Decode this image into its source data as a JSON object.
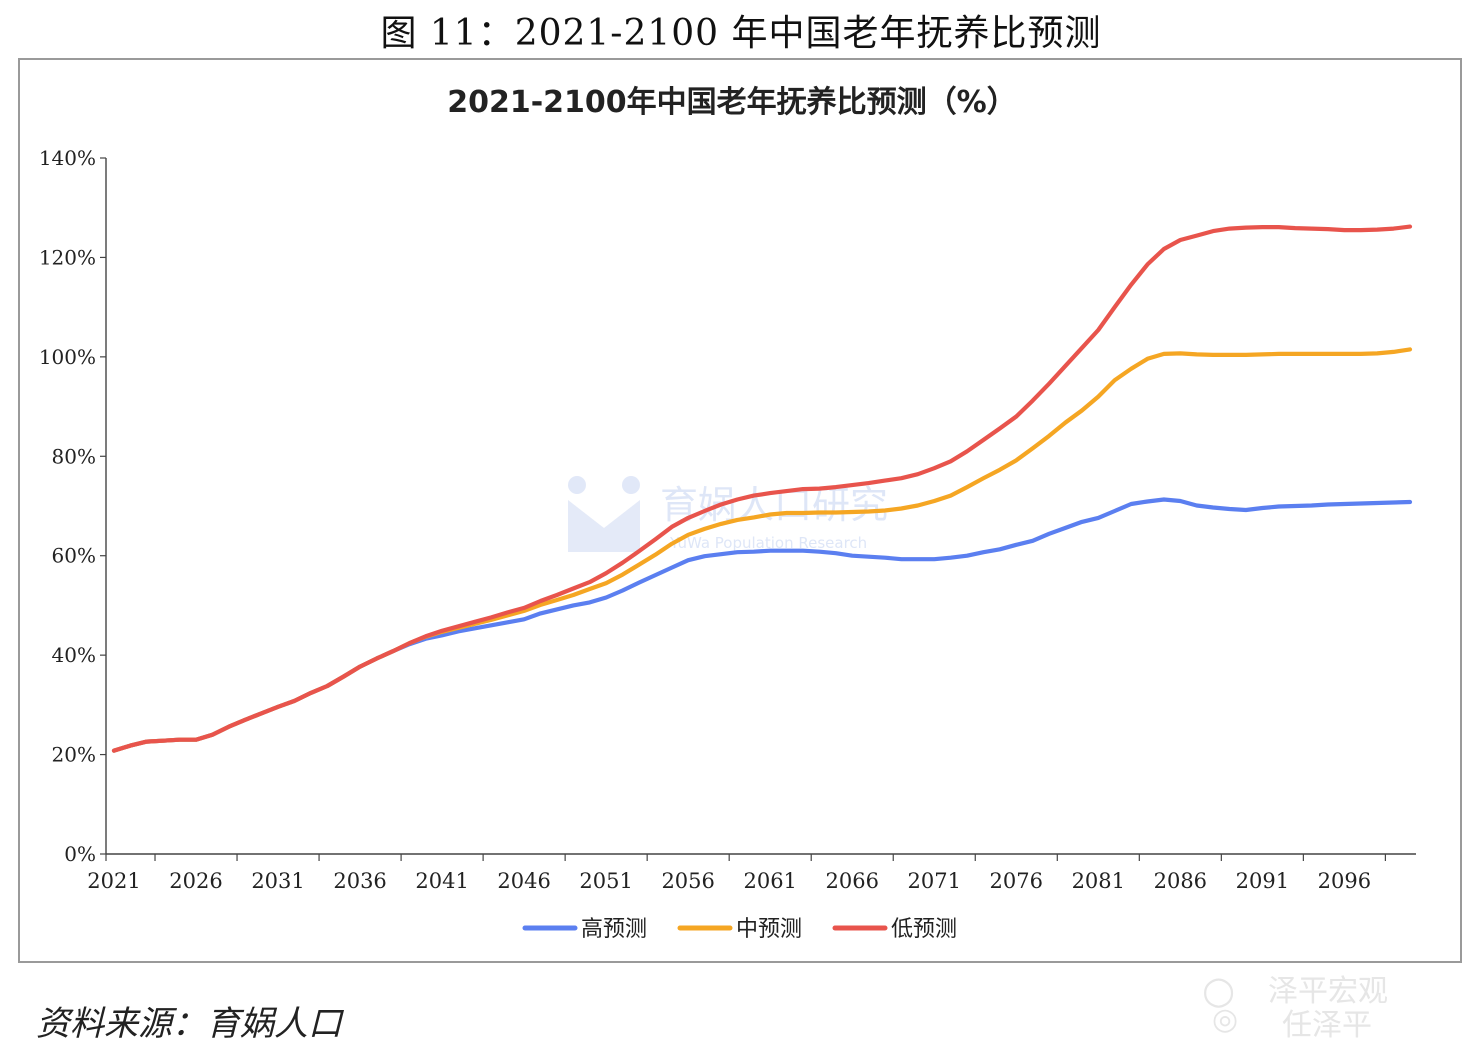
{
  "figure_title": "图 11：2021-2100 年中国老年抚养比预测",
  "source_text": "资料来源：育娲人口",
  "watermark": {
    "center_cn": "育娲人口研究",
    "center_en": "YuWa Population Research",
    "corner_1": "泽平宏观",
    "corner_2": "任泽平",
    "wechat_icon": "wechat-icon",
    "weibo_icon": "weibo-icon"
  },
  "colors": {
    "high": "#5b7ff0",
    "mid": "#f5a623",
    "low": "#e8544c",
    "axis": "#444444",
    "watermark": "#c9d6f2"
  },
  "chart_data": {
    "type": "line",
    "title": "2021-2100年中国老年抚养比预测（%）",
    "xlabel": "",
    "ylabel": "",
    "xlim": [
      2021,
      2100
    ],
    "ylim": [
      0,
      140
    ],
    "yticks": [
      "0%",
      "20%",
      "40%",
      "60%",
      "80%",
      "100%",
      "120%",
      "140%"
    ],
    "xticks": [
      "2021",
      "2026",
      "2031",
      "2036",
      "2041",
      "2046",
      "2051",
      "2056",
      "2061",
      "2066",
      "2071",
      "2076",
      "2081",
      "2086",
      "2091",
      "2096"
    ],
    "grid": false,
    "legend_position": "bottom",
    "x": [
      2021,
      2022,
      2023,
      2024,
      2025,
      2026,
      2027,
      2028,
      2029,
      2030,
      2031,
      2032,
      2033,
      2034,
      2035,
      2036,
      2037,
      2038,
      2039,
      2040,
      2041,
      2042,
      2043,
      2044,
      2045,
      2046,
      2047,
      2048,
      2049,
      2050,
      2051,
      2052,
      2053,
      2054,
      2055,
      2056,
      2057,
      2058,
      2059,
      2060,
      2061,
      2062,
      2063,
      2064,
      2065,
      2066,
      2067,
      2068,
      2069,
      2070,
      2071,
      2072,
      2073,
      2074,
      2075,
      2076,
      2077,
      2078,
      2079,
      2080,
      2081,
      2082,
      2083,
      2084,
      2085,
      2086,
      2087,
      2088,
      2089,
      2090,
      2091,
      2092,
      2093,
      2094,
      2095,
      2096,
      2097,
      2098,
      2099,
      2100
    ],
    "series": [
      {
        "name": "高预测",
        "color": "#5b7ff0",
        "values": [
          20.8,
          21.8,
          22.6,
          22.8,
          23.0,
          23.0,
          24.0,
          25.6,
          27.0,
          28.3,
          29.6,
          30.8,
          32.4,
          33.8,
          35.7,
          37.7,
          39.3,
          40.8,
          42.2,
          43.3,
          44.0,
          44.8,
          45.4,
          46.0,
          46.6,
          47.2,
          48.4,
          49.2,
          50.0,
          50.6,
          51.6,
          53.0,
          54.6,
          56.1,
          57.6,
          59.1,
          59.9,
          60.3,
          60.7,
          60.8,
          61.0,
          61.0,
          61.0,
          60.8,
          60.5,
          60.0,
          59.8,
          59.6,
          59.3,
          59.3,
          59.3,
          59.6,
          60.0,
          60.7,
          61.3,
          62.2,
          63.0,
          64.4,
          65.6,
          66.8,
          67.6,
          69.0,
          70.4,
          70.9,
          71.3,
          71.0,
          70.1,
          69.7,
          69.4,
          69.2,
          69.6,
          69.9,
          70.0,
          70.1,
          70.3,
          70.4,
          70.5,
          70.6,
          70.7,
          70.8
        ]
      },
      {
        "name": "中预测",
        "color": "#f5a623",
        "values": [
          20.8,
          21.8,
          22.6,
          22.8,
          23.0,
          23.0,
          24.0,
          25.6,
          27.0,
          28.3,
          29.6,
          30.8,
          32.4,
          33.8,
          35.7,
          37.7,
          39.3,
          40.8,
          42.4,
          43.7,
          44.7,
          45.5,
          46.3,
          47.1,
          48.0,
          48.9,
          50.1,
          51.1,
          52.1,
          53.3,
          54.5,
          56.2,
          58.2,
          60.2,
          62.4,
          64.2,
          65.4,
          66.4,
          67.2,
          67.7,
          68.3,
          68.6,
          68.6,
          68.7,
          68.7,
          68.8,
          68.9,
          69.1,
          69.5,
          70.1,
          71.0,
          72.1,
          73.8,
          75.6,
          77.3,
          79.2,
          81.6,
          84.1,
          86.8,
          89.2,
          92.0,
          95.3,
          97.6,
          99.6,
          100.6,
          100.7,
          100.5,
          100.4,
          100.4,
          100.4,
          100.5,
          100.6,
          100.6,
          100.6,
          100.6,
          100.6,
          100.6,
          100.7,
          101.0,
          101.5
        ]
      },
      {
        "name": "低预测",
        "color": "#e8544c",
        "values": [
          20.8,
          21.8,
          22.6,
          22.8,
          23.0,
          23.0,
          24.0,
          25.6,
          27.0,
          28.3,
          29.6,
          30.8,
          32.4,
          33.8,
          35.7,
          37.7,
          39.3,
          40.8,
          42.4,
          43.8,
          44.9,
          45.8,
          46.7,
          47.6,
          48.6,
          49.5,
          50.9,
          52.1,
          53.4,
          54.7,
          56.5,
          58.6,
          60.9,
          63.3,
          65.8,
          67.6,
          69.0,
          70.3,
          71.3,
          72.1,
          72.6,
          73.0,
          73.4,
          73.5,
          73.8,
          74.2,
          74.6,
          75.1,
          75.6,
          76.4,
          77.6,
          79.0,
          81.0,
          83.3,
          85.6,
          88.0,
          91.2,
          94.6,
          98.2,
          101.8,
          105.4,
          110.0,
          114.5,
          118.6,
          121.7,
          123.5,
          124.4,
          125.3,
          125.8,
          126.0,
          126.1,
          126.1,
          125.9,
          125.8,
          125.7,
          125.5,
          125.5,
          125.6,
          125.8,
          126.2
        ]
      }
    ]
  }
}
